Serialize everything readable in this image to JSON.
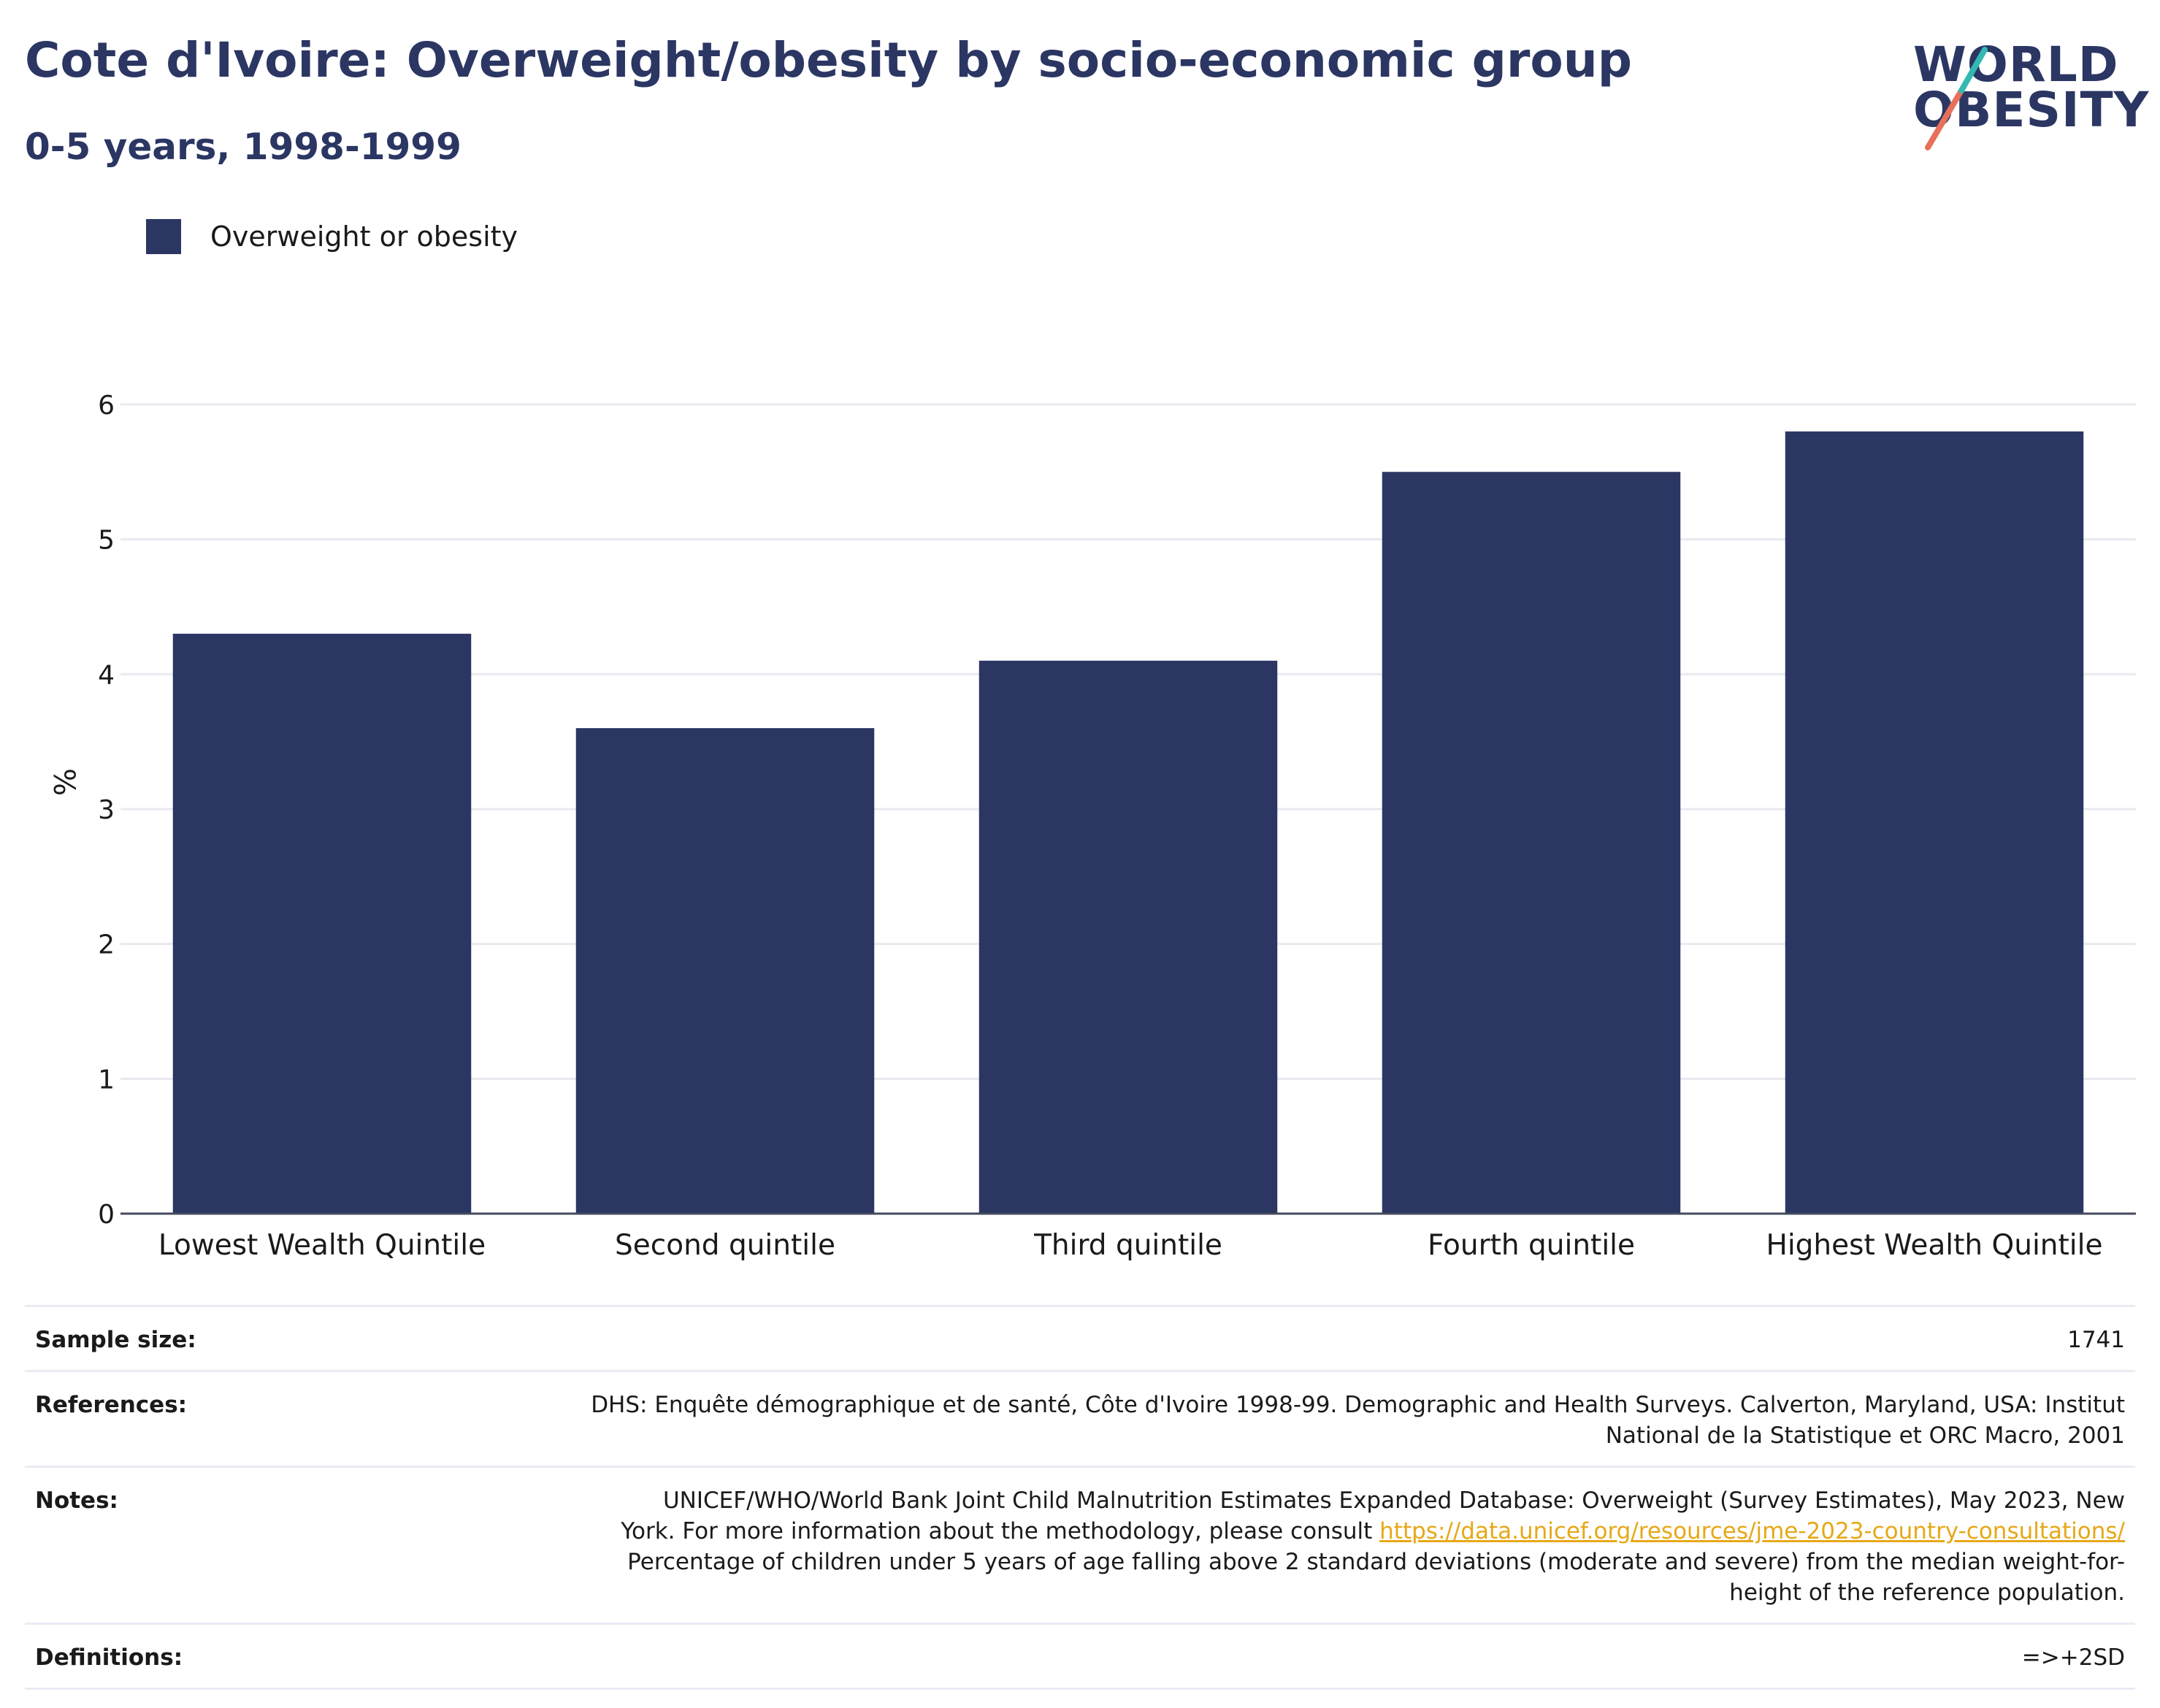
{
  "header": {
    "title": "Cote d'Ivoire: Overweight/obesity by socio-economic group",
    "subtitle": "0-5 years, 1998-1999"
  },
  "logo": {
    "line1": "WORLD",
    "line2": "OBESITY"
  },
  "legend": {
    "label": "Overweight or obesity",
    "color": "#2b3663"
  },
  "chart_data": {
    "type": "bar",
    "categories": [
      "Lowest Wealth Quintile",
      "Second quintile",
      "Third quintile",
      "Fourth quintile",
      "Highest Wealth Quintile"
    ],
    "series": [
      {
        "name": "Overweight or obesity",
        "values": [
          4.3,
          3.6,
          4.1,
          5.5,
          5.8
        ],
        "color": "#2b3663"
      }
    ],
    "title": "Cote d'Ivoire: Overweight/obesity by socio-economic group",
    "subtitle": "0-5 years, 1998-1999",
    "xlabel": "",
    "ylabel": "%",
    "ylim": [
      0,
      6.4
    ],
    "yticks": [
      0,
      1,
      2,
      3,
      4,
      5,
      6
    ],
    "grid": true,
    "legend_position": "top-left"
  },
  "info": {
    "sample_size": {
      "label": "Sample size:",
      "value": "1741"
    },
    "references": {
      "label": "References:",
      "line1": "DHS: Enquête démographique et de santé, Côte d'Ivoire 1998-99. Demographic and Health Surveys. Calverton, Maryland, USA: Institut",
      "line2": "National de la Statistique et ORC Macro, 2001"
    },
    "notes": {
      "label": "Notes:",
      "line1": "UNICEF/WHO/World Bank Joint Child Malnutrition Estimates Expanded Database: Overweight (Survey Estimates), May 2023, New",
      "line2_prefix": "York. For more information about the methodology, please consult",
      "link": "https://data.unicef.org/resources/jme-2023-country-consultations/",
      "line3": "Percentage of children under 5 years of age falling above 2 standard deviations (moderate and severe) from the median weight-for-",
      "line4": "height of the reference population."
    },
    "definitions": {
      "label": "Definitions:",
      "value": "=>+2SD"
    }
  }
}
